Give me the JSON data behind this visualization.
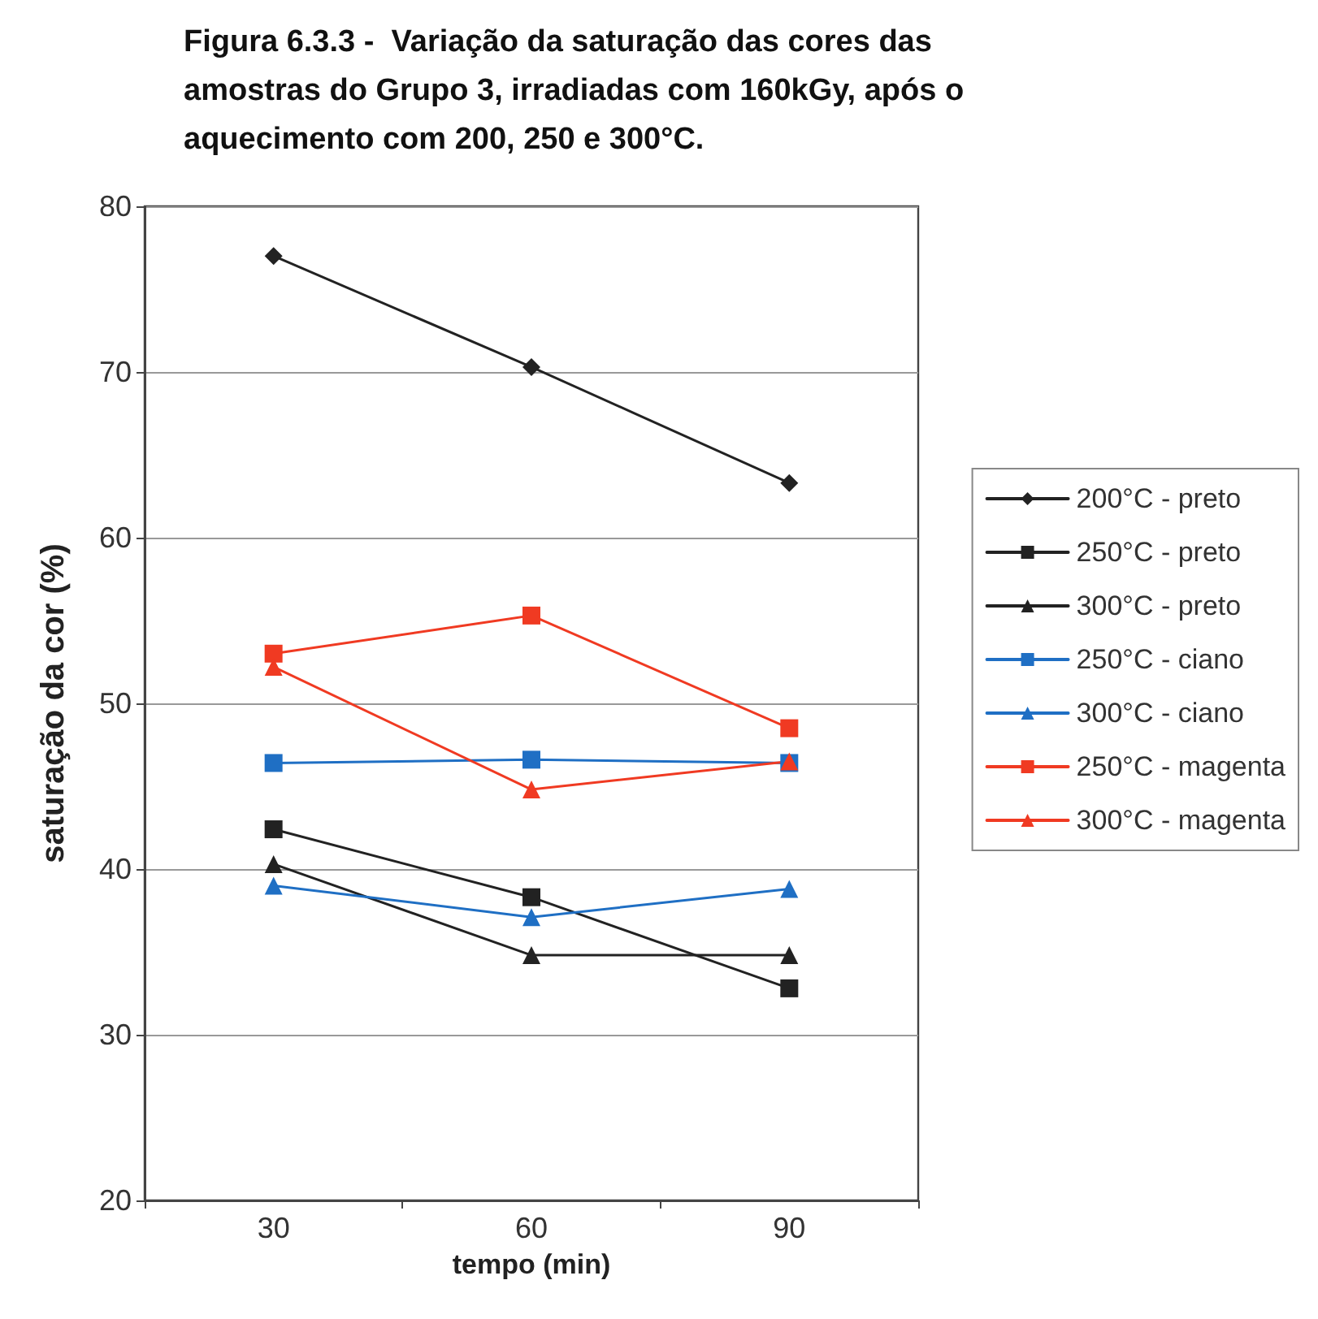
{
  "chart_data": {
    "type": "line",
    "title": "Figura 6.3.3 -  Variação da saturação das cores das amostras do Grupo 3, irradiadas com 160kGy, após o aquecimento com 200, 250 e 300°C.",
    "xlabel": "tempo (min)",
    "ylabel": "saturação da cor (%)",
    "categories": [
      "30",
      "60",
      "90"
    ],
    "ylim": [
      20,
      80
    ],
    "yticks": [
      20,
      30,
      40,
      50,
      60,
      70,
      80
    ],
    "grid": "y",
    "legend": "right",
    "line_style": "solid",
    "series": [
      {
        "name": "200°C - preto",
        "color": "#222222",
        "marker": "diamond",
        "values": [
          77.0,
          70.3,
          63.3
        ]
      },
      {
        "name": "250°C - preto",
        "color": "#222222",
        "marker": "square",
        "values": [
          42.4,
          38.3,
          32.8
        ]
      },
      {
        "name": "300°C - preto",
        "color": "#222222",
        "marker": "triangle",
        "values": [
          40.3,
          34.8,
          34.8
        ]
      },
      {
        "name": "250°C - ciano",
        "color": "#1f6fc4",
        "marker": "square",
        "values": [
          46.4,
          46.6,
          46.4
        ]
      },
      {
        "name": "300°C - ciano",
        "color": "#1f6fc4",
        "marker": "triangle",
        "values": [
          39.0,
          37.1,
          38.8
        ]
      },
      {
        "name": "250°C - magenta",
        "color": "#f03a22",
        "marker": "square",
        "values": [
          53.0,
          55.3,
          48.5
        ]
      },
      {
        "name": "300°C - magenta",
        "color": "#f03a22",
        "marker": "triangle",
        "values": [
          52.2,
          44.8,
          46.5
        ]
      }
    ]
  }
}
